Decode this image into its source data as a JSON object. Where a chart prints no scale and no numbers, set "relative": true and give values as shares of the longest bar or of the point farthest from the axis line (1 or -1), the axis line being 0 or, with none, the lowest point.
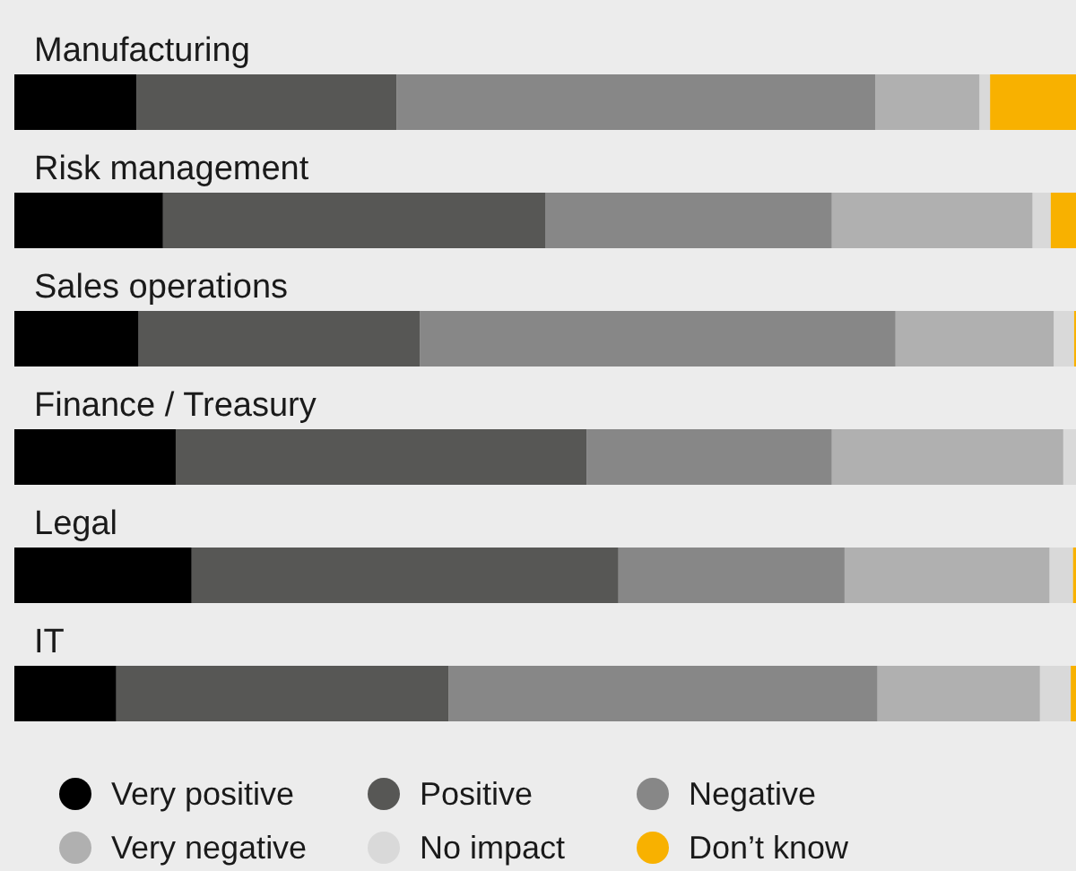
{
  "chart_data": {
    "type": "bar",
    "orientation": "horizontal",
    "stacked": true,
    "relative": true,
    "legend": "bottom left",
    "categories": [
      "Manufacturing",
      "Risk management",
      "Sales operations",
      "Finance / Treasury",
      "Legal",
      "IT"
    ],
    "series": [
      {
        "name": "Very positive",
        "color": "#000000",
        "values": [
          0.115,
          0.14,
          0.117,
          0.152,
          0.167,
          0.096
        ]
      },
      {
        "name": "Positive",
        "color": "#575755",
        "values": [
          0.245,
          0.36,
          0.265,
          0.387,
          0.402,
          0.313
        ]
      },
      {
        "name": "Negative",
        "color": "#878787",
        "values": [
          0.451,
          0.27,
          0.448,
          0.231,
          0.213,
          0.404
        ]
      },
      {
        "name": "Very negative",
        "color": "#b0b0b0",
        "values": [
          0.098,
          0.189,
          0.149,
          0.218,
          0.193,
          0.153
        ]
      },
      {
        "name": "No impact",
        "color": "#d9d9d9",
        "values": [
          0.01,
          0.017,
          0.019,
          0.012,
          0.022,
          0.029
        ]
      },
      {
        "name": "Don’t know",
        "color": "#f8b100",
        "values": [
          0.081,
          0.024,
          0.002,
          null,
          0.003,
          0.005
        ]
      }
    ]
  }
}
